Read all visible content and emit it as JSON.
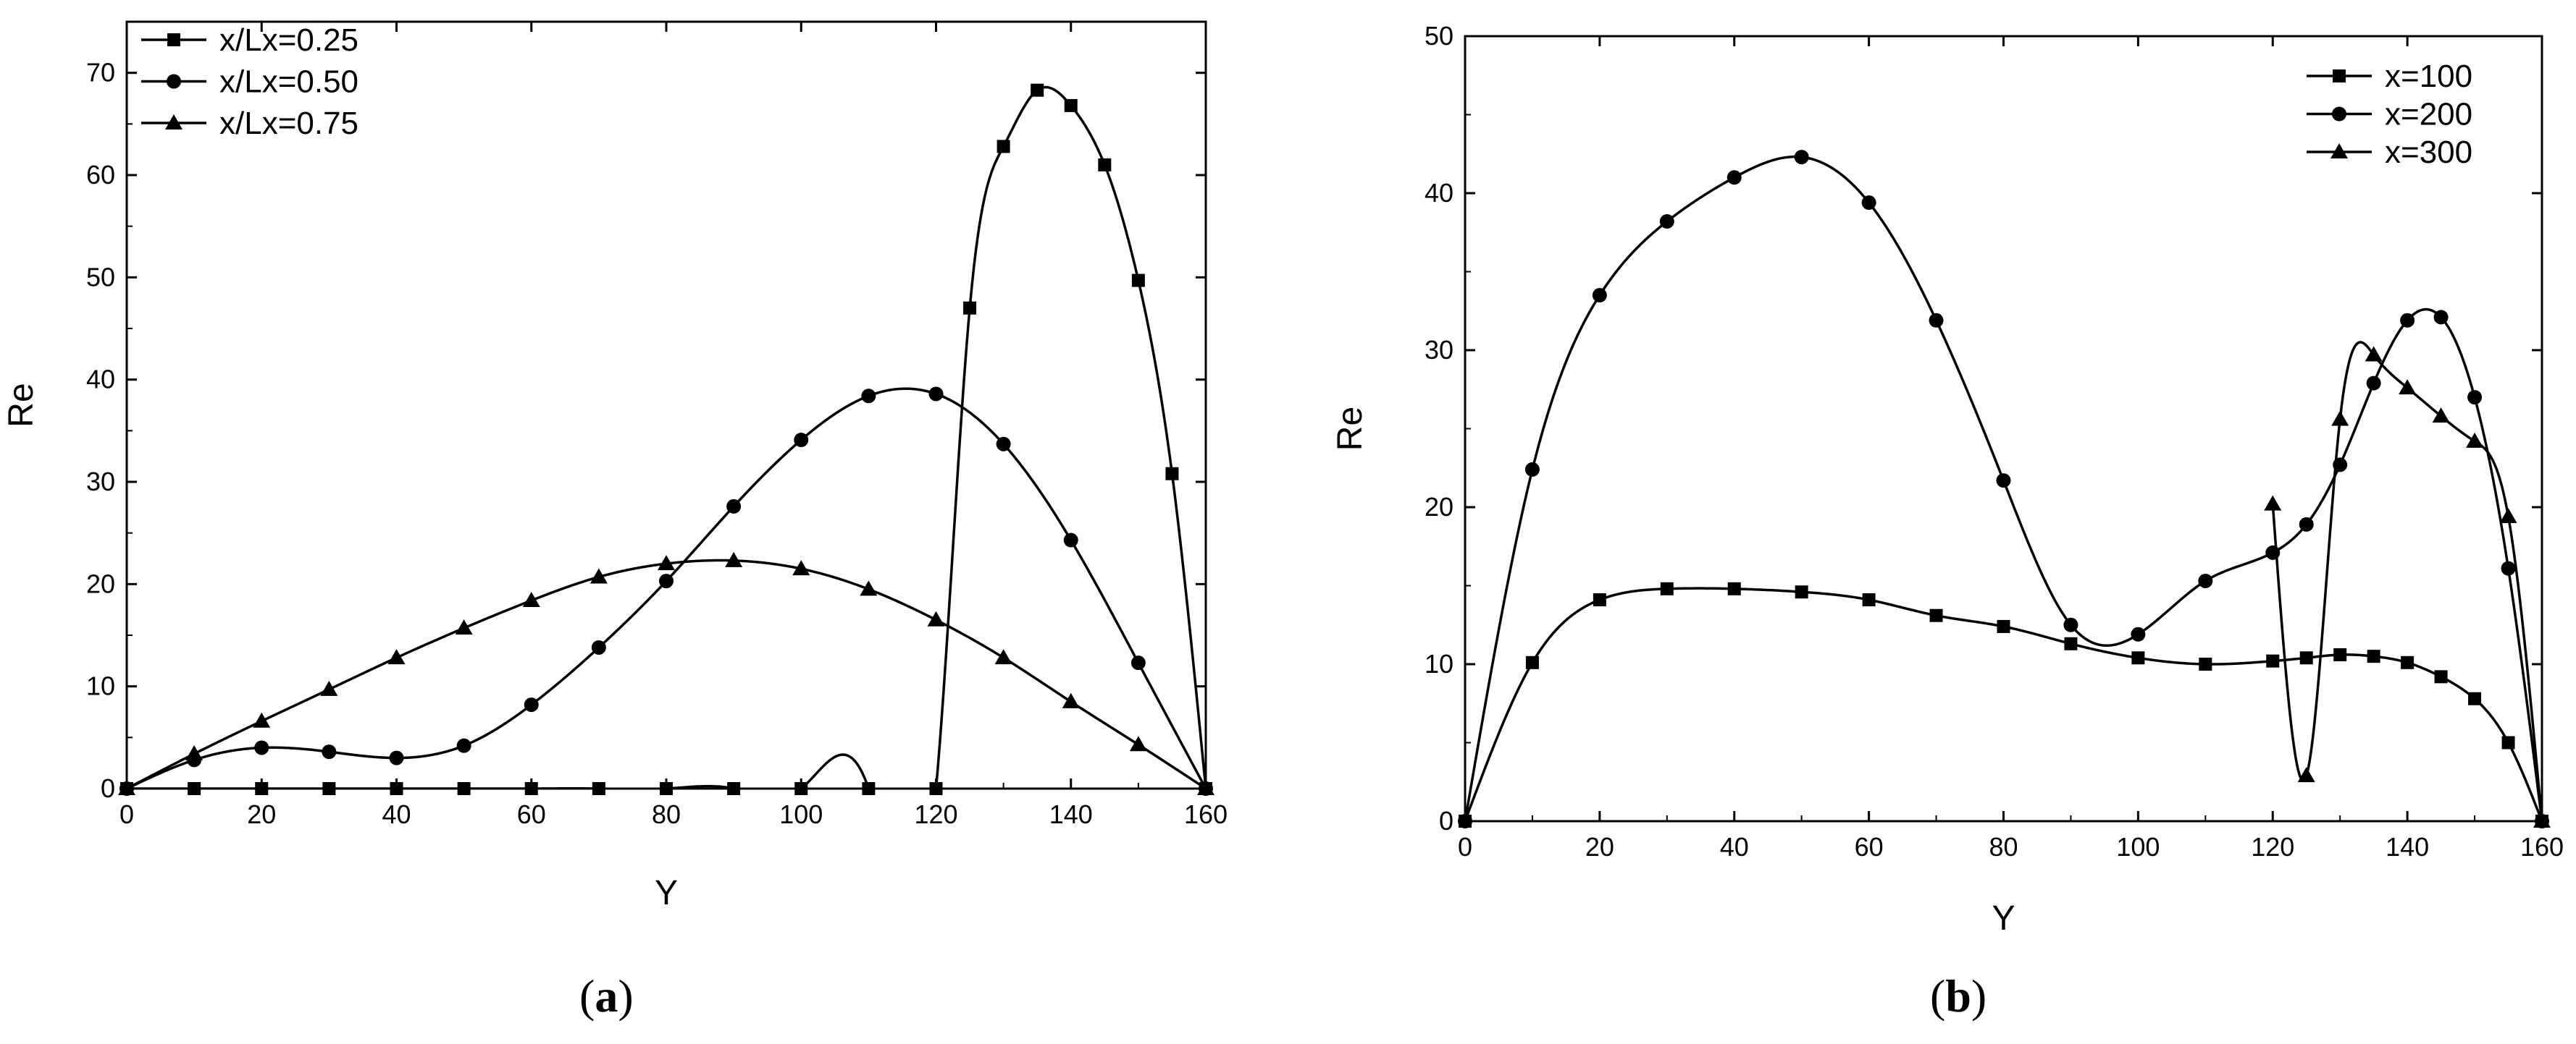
{
  "chart_data": [
    {
      "type": "line",
      "panel": "a",
      "xlabel": "Y",
      "ylabel": "Re",
      "xlim": [
        0,
        160
      ],
      "ylim": [
        0,
        75
      ],
      "xticks": [
        0,
        20,
        40,
        60,
        80,
        100,
        120,
        140,
        160
      ],
      "yticks": [
        0,
        10,
        20,
        30,
        40,
        50,
        60,
        70
      ],
      "legend_position": "top-left",
      "series": [
        {
          "name": "x/Lx=0.25",
          "marker": "square",
          "x": [
            0,
            10,
            20,
            30,
            40,
            50,
            60,
            70,
            80,
            90,
            100,
            110,
            120,
            125,
            130,
            135,
            140,
            145,
            150,
            155,
            160
          ],
          "values": [
            0,
            0,
            0,
            0,
            0,
            0,
            0,
            0,
            0,
            0,
            0,
            0,
            0,
            47,
            62.8,
            68.3,
            66.8,
            61,
            49.7,
            30.8,
            0
          ]
        },
        {
          "name": "x/Lx=0.50",
          "marker": "circle",
          "x": [
            0,
            10,
            20,
            30,
            40,
            50,
            60,
            70,
            80,
            90,
            100,
            110,
            120,
            130,
            140,
            150,
            160
          ],
          "values": [
            0,
            2.8,
            4,
            3.6,
            3,
            4.2,
            8.2,
            13.8,
            20.3,
            27.6,
            34.1,
            38.4,
            38.6,
            33.7,
            24.3,
            12.3,
            0
          ]
        },
        {
          "name": "x/Lx=0.75",
          "marker": "triangle",
          "x": [
            0,
            10,
            20,
            30,
            40,
            50,
            60,
            70,
            80,
            90,
            100,
            110,
            120,
            130,
            140,
            150,
            160
          ],
          "values": [
            0,
            3.4,
            6.6,
            9.7,
            12.8,
            15.7,
            18.4,
            20.7,
            22,
            22.3,
            21.5,
            19.5,
            16.5,
            12.8,
            8.5,
            4.3,
            0
          ]
        }
      ]
    },
    {
      "type": "line",
      "panel": "b",
      "xlabel": "Y",
      "ylabel": "Re",
      "xlim": [
        0,
        160
      ],
      "ylim": [
        0,
        50
      ],
      "xticks": [
        0,
        20,
        40,
        60,
        80,
        100,
        120,
        140,
        160
      ],
      "yticks": [
        0,
        10,
        20,
        30,
        40,
        50
      ],
      "legend_position": "top-right",
      "series": [
        {
          "name": "x=100",
          "marker": "square",
          "x": [
            0,
            10,
            20,
            30,
            40,
            50,
            60,
            70,
            80,
            90,
            100,
            110,
            120,
            125,
            130,
            135,
            140,
            145,
            150,
            155,
            160
          ],
          "values": [
            0,
            10.1,
            14.1,
            14.8,
            14.8,
            14.6,
            14.1,
            13.1,
            12.4,
            11.3,
            10.4,
            10,
            10.2,
            10.4,
            10.6,
            10.5,
            10.1,
            9.2,
            7.8,
            5,
            0
          ]
        },
        {
          "name": "x=200",
          "marker": "circle",
          "x": [
            0,
            10,
            20,
            30,
            40,
            50,
            60,
            70,
            80,
            90,
            100,
            110,
            120,
            125,
            130,
            135,
            140,
            145,
            150,
            155,
            160
          ],
          "values": [
            0,
            22.4,
            33.5,
            38.2,
            41,
            42.3,
            39.4,
            31.9,
            21.7,
            12.5,
            11.9,
            15.3,
            17.1,
            18.9,
            22.7,
            27.9,
            31.9,
            32.1,
            27,
            16.1,
            0
          ]
        },
        {
          "name": "x=300",
          "marker": "triangle",
          "x": [
            120,
            125,
            130,
            135,
            140,
            145,
            150,
            155,
            160
          ],
          "values": [
            20.2,
            2.9,
            25.6,
            29.7,
            27.6,
            25.8,
            24.2,
            19.4,
            0
          ]
        }
      ]
    }
  ],
  "panel_labels": {
    "a": {
      "open": "(",
      "letter": "a",
      "close": ")"
    },
    "b": {
      "open": "(",
      "letter": "b",
      "close": ")"
    }
  }
}
